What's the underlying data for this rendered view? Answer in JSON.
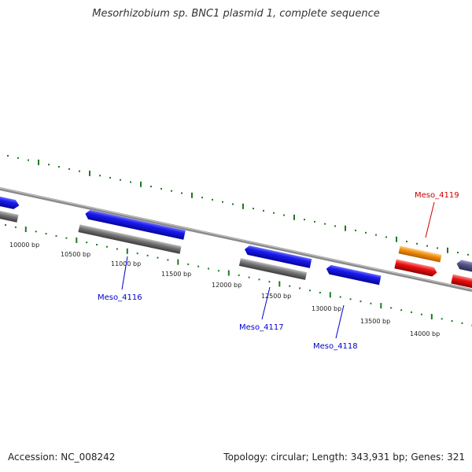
{
  "title": "Mesorhizobium sp. BNC1 plasmid 1, complete sequence",
  "footer": {
    "accession": "Accession: NC_008242",
    "summary": "Topology: circular; Length: 343,931 bp; Genes: 321"
  },
  "scale_labels": [
    "10000 bp",
    "10500 bp",
    "11000 bp",
    "11500 bp",
    "12000 bp",
    "12500 bp",
    "13000 bp",
    "13500 bp",
    "14000 bp"
  ],
  "gene_labels": [
    {
      "text": "Meso_4116",
      "color": "#0000cc"
    },
    {
      "text": "Meso_4117",
      "color": "#0000cc"
    },
    {
      "text": "Meso_4118",
      "color": "#0000cc"
    },
    {
      "text": "Meso_4119",
      "color": "#cc0000"
    }
  ],
  "colors": {
    "backbone": "#8a8a8a",
    "ticks": "#1f7a1f",
    "cds_blue": "#1414ee",
    "gene_gray": "#777777",
    "cds_orange": "#f2900e",
    "cds_red": "#e81010",
    "cds_slate": "#55558a"
  }
}
